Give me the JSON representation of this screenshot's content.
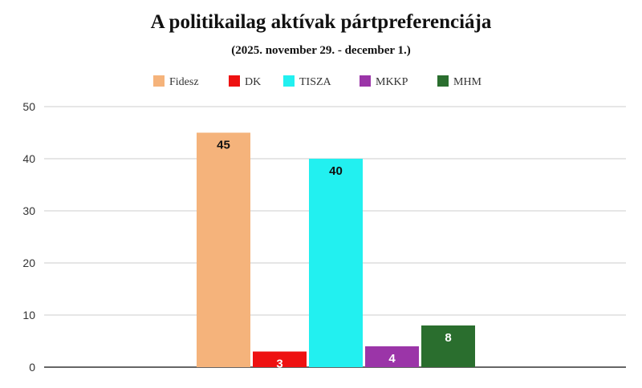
{
  "chart_data": {
    "type": "bar",
    "title": "A politikailag aktívak pártpreferenciája",
    "subtitle": "(2025. november 29. - december 1.)",
    "categories": [
      "Fidesz",
      "DK",
      "TISZA",
      "MKKP",
      "MHM"
    ],
    "values": [
      45,
      3,
      40,
      4,
      8
    ],
    "colors": [
      "#f5b37b",
      "#ee1111",
      "#22f0f0",
      "#9b35a8",
      "#2a6e2e"
    ],
    "ylim": [
      0,
      50
    ],
    "yticks": [
      "0",
      "10",
      "20",
      "30",
      "40",
      "50"
    ],
    "grid": true,
    "legend": "top",
    "legend_entries": [
      "Fidesz",
      "DK",
      "TISZA",
      "MKKP",
      "MHM"
    ],
    "data_labels": [
      "45",
      "3",
      "40",
      "4",
      "8"
    ]
  }
}
